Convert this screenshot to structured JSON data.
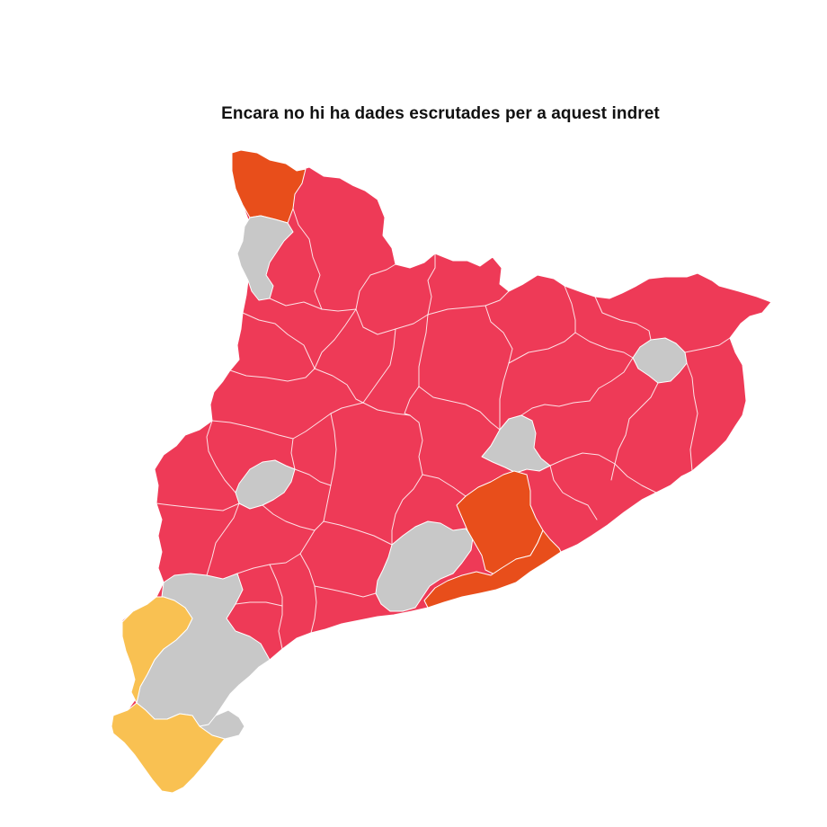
{
  "map": {
    "title": "Encara no hi ha dades escrutades per a aquest indret",
    "colors": {
      "red": "#ee3a57",
      "orange": "#e84e1b",
      "yellow": "#f9c152",
      "gray": "#c8c8c8"
    },
    "regions": [
      {
        "id": "base",
        "fill": "red"
      },
      {
        "id": "val-d-aran",
        "fill": "orange"
      },
      {
        "id": "alta-ribagorca",
        "fill": "gray"
      },
      {
        "id": "osona",
        "fill": "gray"
      },
      {
        "id": "pla-de-l-estany",
        "fill": "gray"
      },
      {
        "id": "pla-d-urgell",
        "fill": "gray"
      },
      {
        "id": "baix-llobregat-barcelones",
        "fill": "gray"
      },
      {
        "id": "valles-oriental",
        "fill": "orange"
      },
      {
        "id": "barcelones",
        "fill": "orange"
      },
      {
        "id": "terra-alta",
        "fill": "gray"
      },
      {
        "id": "ribera-d-ebre",
        "fill": "gray"
      },
      {
        "id": "baix-ebre",
        "fill": "gray"
      },
      {
        "id": "terra-alta-yellow",
        "fill": "yellow"
      },
      {
        "id": "montsia",
        "fill": "yellow"
      }
    ]
  }
}
